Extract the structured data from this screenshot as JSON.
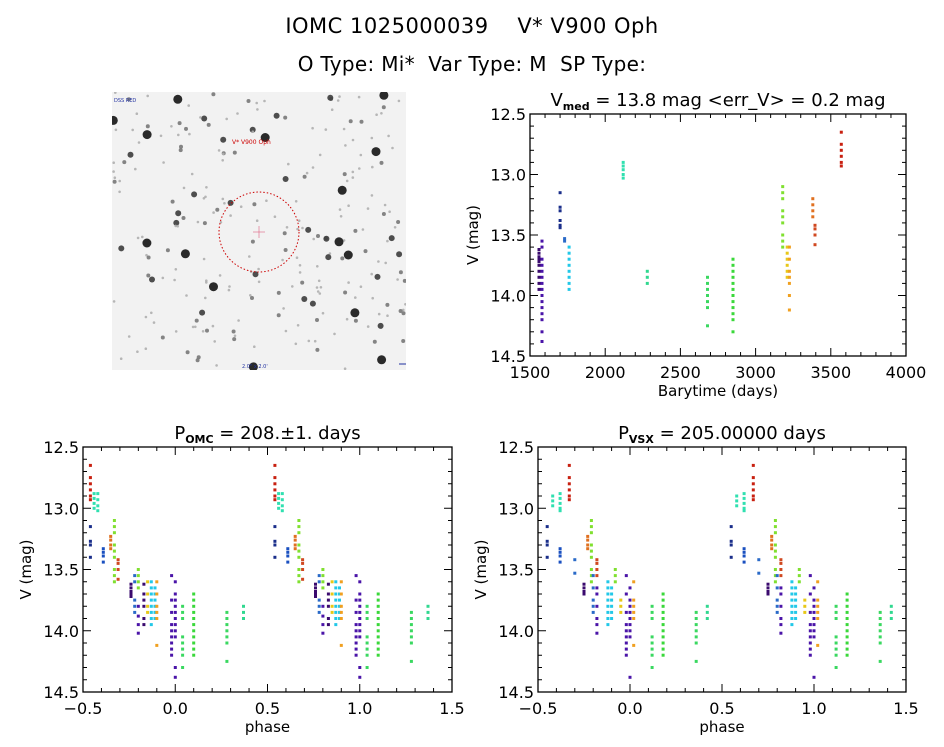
{
  "header": {
    "line1": "IOMC 1025000039    V* V900 Oph",
    "line2": "O Type: Mi*  Var Type: M  SP Type:"
  },
  "finding_chart": {
    "target_label": "V* V900 Oph",
    "top_left_label": "DSS RED",
    "bottom_center_label": "2.0\" x 2.0'",
    "orientation_icon": "north-east-arrow-icon",
    "circle_color": "#cc0000"
  },
  "chart_data": [
    {
      "id": "lightcurve",
      "type": "scatter",
      "title": "V_med = 13.8 mag <err_V> = 0.2 mag",
      "title_parts": {
        "pre": "V",
        "sub": "med",
        "post": " = 13.8 mag <err_V> = 0.2 mag"
      },
      "xlabel": "Barytime (days)",
      "ylabel": "V (mag)",
      "xlim": [
        1500,
        4000
      ],
      "ylim": [
        14.5,
        12.5
      ],
      "y_inverted": true,
      "xticks": [
        1500,
        2000,
        2500,
        3000,
        3500,
        4000
      ],
      "xtick_labels": [
        "1500",
        "2000",
        "2500",
        "3000",
        "3500",
        "4000"
      ],
      "yticks": [
        12.5,
        13.0,
        13.5,
        14.0,
        14.5
      ],
      "ytick_labels": [
        "12.5",
        "13.0",
        "13.5",
        "14.0",
        "14.5"
      ],
      "grid": false,
      "groups": [
        {
          "t": 1560,
          "color": "#3a0a6e",
          "v": [
            13.62,
            13.65,
            13.68,
            13.7,
            13.72,
            13.75,
            13.8,
            13.85,
            13.9,
            13.95
          ]
        },
        {
          "t": 1580,
          "color": "#4a14a8",
          "v": [
            13.55,
            13.6,
            13.7,
            13.75,
            13.8,
            13.85,
            13.9,
            13.95,
            14.0,
            14.05,
            14.1,
            14.15,
            14.2,
            14.3,
            14.38
          ]
        },
        {
          "t": 1700,
          "color": "#1a2e8a",
          "v": [
            13.15,
            13.27,
            13.3,
            13.38,
            13.42,
            13.44
          ]
        },
        {
          "t": 1730,
          "color": "#2a6ac8",
          "v": [
            13.53,
            13.55
          ]
        },
        {
          "t": 1760,
          "color": "#22c8e8",
          "v": [
            13.6,
            13.65,
            13.7,
            13.75,
            13.8,
            13.85,
            13.9,
            13.95
          ]
        },
        {
          "t": 2120,
          "color": "#30e0b0",
          "v": [
            12.9,
            12.93,
            12.96,
            13.0,
            13.03
          ]
        },
        {
          "t": 2280,
          "color": "#30d890",
          "v": [
            13.8,
            13.85,
            13.9
          ]
        },
        {
          "t": 2680,
          "color": "#3ad860",
          "v": [
            13.85,
            13.9,
            13.95,
            14.0,
            14.05,
            14.1,
            14.25
          ]
        },
        {
          "t": 2850,
          "color": "#3ad83a",
          "v": [
            13.7,
            13.75,
            13.8,
            13.85,
            13.9,
            13.95,
            14.0,
            14.05,
            14.1,
            14.15,
            14.2,
            14.3
          ]
        },
        {
          "t": 3180,
          "color": "#80e030",
          "v": [
            13.1,
            13.15,
            13.2,
            13.3,
            13.35,
            13.4,
            13.5,
            13.55,
            13.6
          ]
        },
        {
          "t": 3210,
          "color": "#e8c818",
          "v": [
            13.6,
            13.65,
            13.7,
            13.75,
            13.8,
            13.85
          ]
        },
        {
          "t": 3225,
          "color": "#f0a020",
          "v": [
            13.6,
            13.7,
            13.8,
            13.85,
            13.9,
            14.0,
            14.12
          ]
        },
        {
          "t": 3380,
          "color": "#e07020",
          "v": [
            13.2,
            13.25,
            13.3,
            13.35
          ]
        },
        {
          "t": 3395,
          "color": "#d04820",
          "v": [
            13.42,
            13.45,
            13.5,
            13.58
          ]
        },
        {
          "t": 3570,
          "color": "#c82010",
          "v": [
            12.65,
            12.75,
            12.8,
            12.85,
            12.9,
            12.93
          ]
        }
      ]
    },
    {
      "id": "phase-omc",
      "type": "scatter",
      "title": "P_OMC = 208.±1. days",
      "title_parts": {
        "pre": "P",
        "sub": "OMC",
        "post": " = 208.±1. days"
      },
      "period_days": 208,
      "xlabel": "phase",
      "ylabel": "V (mag)",
      "xlim": [
        -0.5,
        1.5
      ],
      "ylim": [
        14.5,
        12.5
      ],
      "y_inverted": true,
      "xticks": [
        -0.5,
        0.0,
        0.5,
        1.0,
        1.5
      ],
      "xtick_labels": [
        "−0.5",
        "0.0",
        "0.5",
        "1.0",
        "1.5"
      ],
      "yticks": [
        12.5,
        13.0,
        13.5,
        14.0,
        14.5
      ],
      "ytick_labels": [
        "12.5",
        "13.0",
        "13.5",
        "14.0",
        "14.5"
      ],
      "grid": false,
      "repeat_offset": 1.0,
      "groups": [
        {
          "phase": -0.46,
          "color": "#c82010",
          "v": [
            12.65,
            12.75,
            12.8,
            12.85,
            12.9,
            12.93
          ]
        },
        {
          "phase": -0.44,
          "color": "#30e0b0",
          "v": [
            12.88,
            12.92,
            12.96,
            13.0
          ]
        },
        {
          "phase": -0.42,
          "color": "#30e0b0",
          "v": [
            12.88,
            12.93,
            12.98,
            13.02
          ]
        },
        {
          "phase": -0.46,
          "color": "#1a2e8a",
          "v": [
            13.15,
            13.27,
            13.3,
            13.4
          ]
        },
        {
          "phase": -0.39,
          "color": "#1a50c0",
          "v": [
            13.33,
            13.36,
            13.39,
            13.44
          ]
        },
        {
          "phase": -0.35,
          "color": "#e07020",
          "v": [
            13.23,
            13.26,
            13.3,
            13.33
          ]
        },
        {
          "phase": -0.33,
          "color": "#80e030",
          "v": [
            13.1,
            13.15,
            13.2,
            13.3,
            13.35,
            13.4,
            13.5,
            13.55,
            13.6
          ]
        },
        {
          "phase": -0.31,
          "color": "#d04820",
          "v": [
            13.42,
            13.45,
            13.5,
            13.58
          ]
        },
        {
          "phase": -0.24,
          "color": "#3a0a6e",
          "v": [
            13.62,
            13.65,
            13.68,
            13.7,
            13.72
          ]
        },
        {
          "phase": -0.22,
          "color": "#2a6ac8",
          "v": [
            13.55,
            13.6,
            13.75,
            13.8,
            13.85
          ]
        },
        {
          "phase": -0.2,
          "color": "#80e030",
          "v": [
            13.5,
            13.55,
            13.6,
            13.65
          ]
        },
        {
          "phase": -0.2,
          "color": "#4a14a8",
          "v": [
            13.8,
            13.88,
            13.95,
            14.02
          ]
        },
        {
          "phase": -0.17,
          "color": "#3a0a6e",
          "v": [
            13.62,
            13.7,
            13.75,
            13.8,
            13.9,
            13.95
          ]
        },
        {
          "phase": -0.15,
          "color": "#e8c818",
          "v": [
            13.6,
            13.7,
            13.8,
            13.85
          ]
        },
        {
          "phase": -0.13,
          "color": "#22c8e8",
          "v": [
            13.6,
            13.65,
            13.7,
            13.75,
            13.8,
            13.85,
            13.9,
            13.95
          ]
        },
        {
          "phase": -0.11,
          "color": "#22c8e8",
          "v": [
            13.65,
            13.7,
            13.75,
            13.8,
            13.85,
            13.9
          ]
        },
        {
          "phase": -0.1,
          "color": "#f0a020",
          "v": [
            13.6,
            13.7,
            13.8,
            13.85,
            13.9,
            14.12
          ]
        },
        {
          "phase": -0.02,
          "color": "#4a14a8",
          "v": [
            13.55,
            13.75,
            13.85,
            13.95,
            14.0,
            14.05,
            14.1,
            14.15,
            14.2
          ]
        },
        {
          "phase": 0.0,
          "color": "#4a14a8",
          "v": [
            13.6,
            13.7,
            13.75,
            13.8,
            13.85,
            13.9,
            13.95,
            14.0,
            14.05,
            14.3,
            14.38
          ]
        },
        {
          "phase": 0.04,
          "color": "#3ad860",
          "v": [
            13.8,
            13.85,
            13.9,
            14.05,
            14.1,
            14.15,
            14.2,
            14.3
          ]
        },
        {
          "phase": 0.1,
          "color": "#3ad83a",
          "v": [
            13.7,
            13.75,
            13.8,
            13.85,
            13.9,
            13.95,
            14.0,
            14.05,
            14.1,
            14.15,
            14.2
          ]
        },
        {
          "phase": 0.28,
          "color": "#3ad860",
          "v": [
            13.85,
            13.9,
            13.95,
            14.0,
            14.05,
            14.1,
            14.25
          ]
        },
        {
          "phase": 0.37,
          "color": "#30d890",
          "v": [
            13.8,
            13.85,
            13.9
          ]
        }
      ]
    },
    {
      "id": "phase-vsx",
      "type": "scatter",
      "title": "P_VSX = 205.00000 days",
      "title_parts": {
        "pre": "P",
        "sub": "VSX",
        "post": " = 205.00000 days"
      },
      "period_days": 205.0,
      "xlabel": "phase",
      "ylabel": "V (mag)",
      "xlim": [
        -0.5,
        1.5
      ],
      "ylim": [
        14.5,
        12.5
      ],
      "y_inverted": true,
      "xticks": [
        -0.5,
        0.0,
        0.5,
        1.0,
        1.5
      ],
      "xtick_labels": [
        "−0.5",
        "0.0",
        "0.5",
        "1.0",
        "1.5"
      ],
      "yticks": [
        12.5,
        13.0,
        13.5,
        14.0,
        14.5
      ],
      "ytick_labels": [
        "12.5",
        "13.0",
        "13.5",
        "14.0",
        "14.5"
      ],
      "grid": false,
      "repeat_offset": 1.0,
      "groups": [
        {
          "phase": -0.33,
          "color": "#c82010",
          "v": [
            12.65,
            12.75,
            12.8,
            12.85,
            12.9,
            12.93
          ]
        },
        {
          "phase": -0.42,
          "color": "#30e0b0",
          "v": [
            12.9,
            12.94,
            12.98
          ]
        },
        {
          "phase": -0.38,
          "color": "#30e0b0",
          "v": [
            12.88,
            12.92,
            12.96,
            13.0,
            13.02
          ]
        },
        {
          "phase": -0.45,
          "color": "#1a2e8a",
          "v": [
            13.15,
            13.27,
            13.3,
            13.4
          ]
        },
        {
          "phase": -0.38,
          "color": "#1a50c0",
          "v": [
            13.33,
            13.36,
            13.39,
            13.44
          ]
        },
        {
          "phase": -0.3,
          "color": "#2a6ac8",
          "v": [
            13.42,
            13.53
          ]
        },
        {
          "phase": -0.23,
          "color": "#e07020",
          "v": [
            13.23,
            13.26,
            13.3,
            13.33
          ]
        },
        {
          "phase": -0.21,
          "color": "#80e030",
          "v": [
            13.1,
            13.15,
            13.2,
            13.3,
            13.35,
            13.4,
            13.5,
            13.55,
            13.6
          ]
        },
        {
          "phase": -0.18,
          "color": "#d04820",
          "v": [
            13.42,
            13.45,
            13.5,
            13.55
          ]
        },
        {
          "phase": -0.25,
          "color": "#3a0a6e",
          "v": [
            13.62,
            13.65,
            13.68,
            13.7
          ]
        },
        {
          "phase": -0.2,
          "color": "#2a6ac8",
          "v": [
            13.55,
            13.65,
            13.75,
            13.8,
            13.85
          ]
        },
        {
          "phase": -0.18,
          "color": "#4a14a8",
          "v": [
            13.65,
            13.7,
            13.8,
            13.9,
            13.95,
            14.02
          ]
        },
        {
          "phase": -0.08,
          "color": "#80e030",
          "v": [
            13.5,
            13.55,
            13.6
          ]
        },
        {
          "phase": -0.12,
          "color": "#22c8e8",
          "v": [
            13.6,
            13.65,
            13.7,
            13.75,
            13.8,
            13.85,
            13.9,
            13.95
          ]
        },
        {
          "phase": -0.1,
          "color": "#22c8e8",
          "v": [
            13.65,
            13.7,
            13.75,
            13.8,
            13.85,
            13.9
          ]
        },
        {
          "phase": -0.05,
          "color": "#e8c818",
          "v": [
            13.75,
            13.8,
            13.85
          ]
        },
        {
          "phase": -0.02,
          "color": "#4a14a8",
          "v": [
            13.55,
            13.7,
            13.85,
            13.95,
            14.0,
            14.05,
            14.1,
            14.15,
            14.2
          ]
        },
        {
          "phase": 0.0,
          "color": "#4a14a8",
          "v": [
            13.65,
            13.75,
            13.8,
            13.85,
            13.9,
            13.95,
            14.0,
            14.05,
            14.38
          ]
        },
        {
          "phase": 0.02,
          "color": "#f0a020",
          "v": [
            13.6,
            13.75,
            13.8,
            13.85,
            13.9,
            14.12
          ]
        },
        {
          "phase": 0.12,
          "color": "#3ad860",
          "v": [
            13.8,
            13.85,
            13.9,
            14.05,
            14.1,
            14.15,
            14.2,
            14.3
          ]
        },
        {
          "phase": 0.18,
          "color": "#3ad83a",
          "v": [
            13.7,
            13.75,
            13.8,
            13.85,
            13.9,
            13.95,
            14.0,
            14.05,
            14.1,
            14.15,
            14.2
          ]
        },
        {
          "phase": 0.36,
          "color": "#3ad860",
          "v": [
            13.85,
            13.9,
            13.95,
            14.0,
            14.05,
            14.1,
            14.25
          ]
        },
        {
          "phase": 0.42,
          "color": "#30d890",
          "v": [
            13.8,
            13.85,
            13.9
          ]
        }
      ]
    }
  ]
}
